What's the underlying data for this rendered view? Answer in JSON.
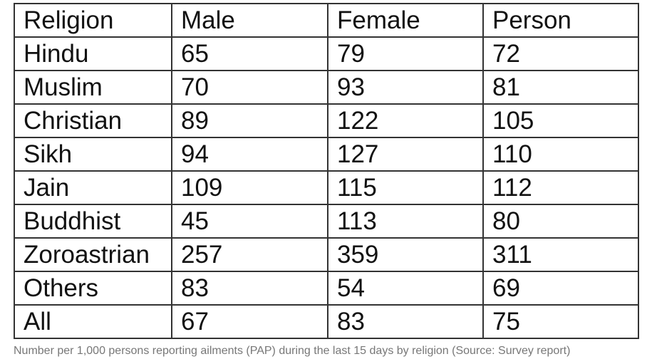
{
  "table": {
    "headers": [
      "Religion",
      "Male",
      "Female",
      "Person"
    ],
    "rows": [
      [
        "Hindu",
        "65",
        "79",
        "72"
      ],
      [
        "Muslim",
        "70",
        "93",
        "81"
      ],
      [
        "Christian",
        "89",
        "122",
        "105"
      ],
      [
        "Sikh",
        "94",
        "127",
        "110"
      ],
      [
        "Jain",
        "109",
        "115",
        "112"
      ],
      [
        "Buddhist",
        "45",
        "113",
        "80"
      ],
      [
        "Zoroastrian",
        "257",
        "359",
        "311"
      ],
      [
        "Others",
        "83",
        "54",
        "69"
      ],
      [
        "All",
        "67",
        "83",
        "75"
      ]
    ]
  },
  "caption": "Number per 1,000 persons reporting ailments (PAP) during the last 15 days by religion (Source: Survey report)"
}
